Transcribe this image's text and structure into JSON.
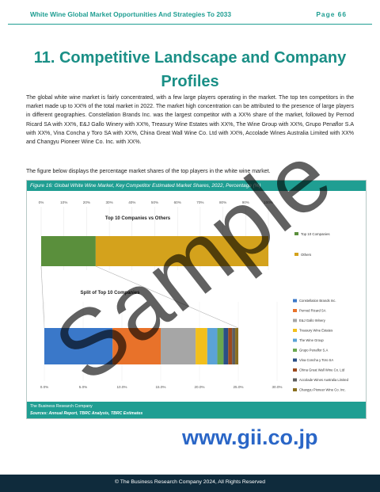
{
  "header": {
    "title": "White Wine Global Market Opportunities And Strategies To 2033",
    "page": "Page 66"
  },
  "section": {
    "title": "11. Competitive Landscape and Company Profiles"
  },
  "body": {
    "paragraph1": "The global white wine market is fairly concentrated, with a few large players operating in the market. The top ten competitors in the market made up to XX% of the total market in 2022. The market high concentration can be attributed to the presence of large players in different geographies. Constellation Brands Inc. was the largest competitor with a XX% share of the market, followed by Pernod Ricard SA with XX%, E&J Gallo Winery with XX%, Treasury Wine Estates with XX%, The Wine Group with XX%, Grupo Penaflor S.A with XX%, Vina Concha y Toro SA with XX%, China Great Wall Wine Co. Ltd with XX%, Accolade Wines Australia Limited with XX% and Changyu Pioneer Wine Co. Inc. with XX%.",
    "paragraph2": "The figure below displays the percentage market shares of the top players in the white wine market."
  },
  "figure": {
    "caption": "Figure 16: Global White Wine Market, Key Competitor Estimated Market Shares, 2022, Percentage (%)",
    "source_line1": "The Business Research Company",
    "source_line2": "Sources: Annual Report, TBRC Analysis, TBRC Estimates"
  },
  "chart_data": [
    {
      "type": "bar",
      "orientation": "horizontal-stacked",
      "title": "Top 10 Companies vs Others",
      "xlim": [
        0,
        100
      ],
      "x_ticks": [
        "0%",
        "10%",
        "20%",
        "30%",
        "40%",
        "50%",
        "60%",
        "70%",
        "80%",
        "90%",
        "100%"
      ],
      "legend_position": "right",
      "series": [
        {
          "name": "Top 10 Companies",
          "values": [
            24
          ],
          "color": "#5a8f3c"
        },
        {
          "name": "Others",
          "values": [
            76
          ],
          "color": "#d4a21c"
        }
      ]
    },
    {
      "type": "bar",
      "orientation": "horizontal-stacked",
      "title": "Split of Top 10 Companies",
      "xlim": [
        0,
        30
      ],
      "x_ticks": [
        "0.0%",
        "5.0%",
        "10.0%",
        "15.0%",
        "20.0%",
        "25.0%",
        "30.0%"
      ],
      "legend_position": "right",
      "series": [
        {
          "name": "Constellation Brands Inc.",
          "values": [
            8.8
          ],
          "color": "#3a78c9"
        },
        {
          "name": "Pernod Ricard SA",
          "values": [
            6.2
          ],
          "color": "#e8722a"
        },
        {
          "name": "E&J Gallo Winery",
          "values": [
            4.5
          ],
          "color": "#a6a6a6"
        },
        {
          "name": "Treasury Wine Estates",
          "values": [
            1.5
          ],
          "color": "#f2bf1c"
        },
        {
          "name": "The Wine Group",
          "values": [
            1.3
          ],
          "color": "#5ba3d6"
        },
        {
          "name": "Grupo Penaflor S.A",
          "values": [
            0.8
          ],
          "color": "#6aa84f"
        },
        {
          "name": "Vina Concha y Toro SA",
          "values": [
            0.6
          ],
          "color": "#2b4f86"
        },
        {
          "name": "China Great Wall Wine Co. Ltd",
          "values": [
            0.5
          ],
          "color": "#9c4a1e"
        },
        {
          "name": "Accolade Wines Australia Limited",
          "values": [
            0.4
          ],
          "color": "#5e5e5e"
        },
        {
          "name": "Changyu Pioneer Wine Co. Inc.",
          "values": [
            0.4
          ],
          "color": "#8a6f1f"
        }
      ]
    }
  ],
  "watermark": {
    "text": "Sample"
  },
  "gii": {
    "url": "www.gii.co.jp"
  },
  "footer": {
    "text": "© The Business Research Company 2024, All Rights Reserved"
  },
  "colors": {
    "accent": "#1f9e92",
    "footer_bg": "#0f2b3c",
    "gii_blue": "#2a66c7"
  }
}
